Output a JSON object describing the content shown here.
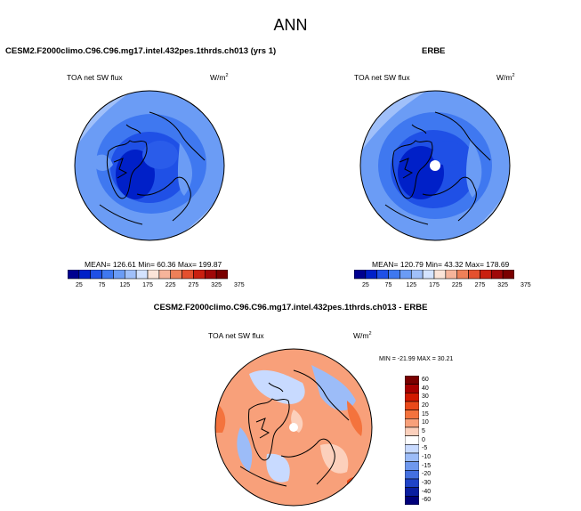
{
  "page_title": "ANN",
  "panels": {
    "model": {
      "title": "CESM2.F2000climo.C96.C96.mg17.intel.432pes.1thrds.ch013 (yrs 1)",
      "variable": "TOA net SW flux",
      "units": "W/m",
      "units_exp": "2",
      "stats": "MEAN= 126.61  Min=  60.36  Max= 199.87"
    },
    "obs": {
      "title": "ERBE",
      "variable": "TOA net SW flux",
      "units": "W/m",
      "units_exp": "2",
      "stats": "MEAN= 120.79  Min=  43.32  Max= 178.69"
    },
    "diff": {
      "title": "CESM2.F2000climo.C96.C96.mg17.intel.432pes.1thrds.ch013 - ERBE",
      "variable": "TOA net SW flux",
      "units": "W/m",
      "units_exp": "2",
      "stats": "MIN = -21.99 MAX =  30.21"
    }
  },
  "chart_data": [
    {
      "type": "heatmap",
      "title": "CESM2.F2000climo.C96.C96.mg17.intel.432pes.1thrds.ch013 (yrs 1)",
      "projection": "north polar stereographic",
      "variable": "TOA net SW flux",
      "mean": 126.61,
      "min": 60.36,
      "max": 199.87,
      "colorbar_ticks": [
        "25",
        "75",
        "125",
        "175",
        "225",
        "275",
        "325",
        "375"
      ]
    },
    {
      "type": "heatmap",
      "title": "ERBE",
      "projection": "north polar stereographic",
      "variable": "TOA net SW flux",
      "mean": 120.79,
      "min": 43.32,
      "max": 178.69,
      "colorbar_ticks": [
        "25",
        "75",
        "125",
        "175",
        "225",
        "275",
        "325",
        "375"
      ]
    },
    {
      "type": "heatmap",
      "title": "CESM2.F2000climo.C96.C96.mg17.intel.432pes.1thrds.ch013 - ERBE",
      "projection": "north polar stereographic",
      "variable": "TOA net SW flux",
      "min": -21.99,
      "max": 30.21,
      "colorbar_ticks": [
        "60",
        "40",
        "30",
        "20",
        "15",
        "10",
        "5",
        "0",
        "-5",
        "-10",
        "-15",
        "-20",
        "-30",
        "-40",
        "-60"
      ]
    }
  ],
  "colors": {
    "abs_scale": [
      "#00008f",
      "#0020c8",
      "#1f50e6",
      "#3f78f0",
      "#6b9cf5",
      "#a0c0fa",
      "#d4e3ff",
      "#fbe4d8",
      "#f6b49a",
      "#ee8058",
      "#e4502e",
      "#c92010",
      "#a00808",
      "#7a0000"
    ],
    "diff_scale": [
      "#7a0000",
      "#a80000",
      "#d21a00",
      "#ea4a1a",
      "#f4733d",
      "#f8a07a",
      "#fcd0bc",
      "#ffffff",
      "#c8daff",
      "#9cbcf8",
      "#6e98ee",
      "#4470e0",
      "#1f44c8",
      "#0a1ea0",
      "#00007a"
    ]
  }
}
